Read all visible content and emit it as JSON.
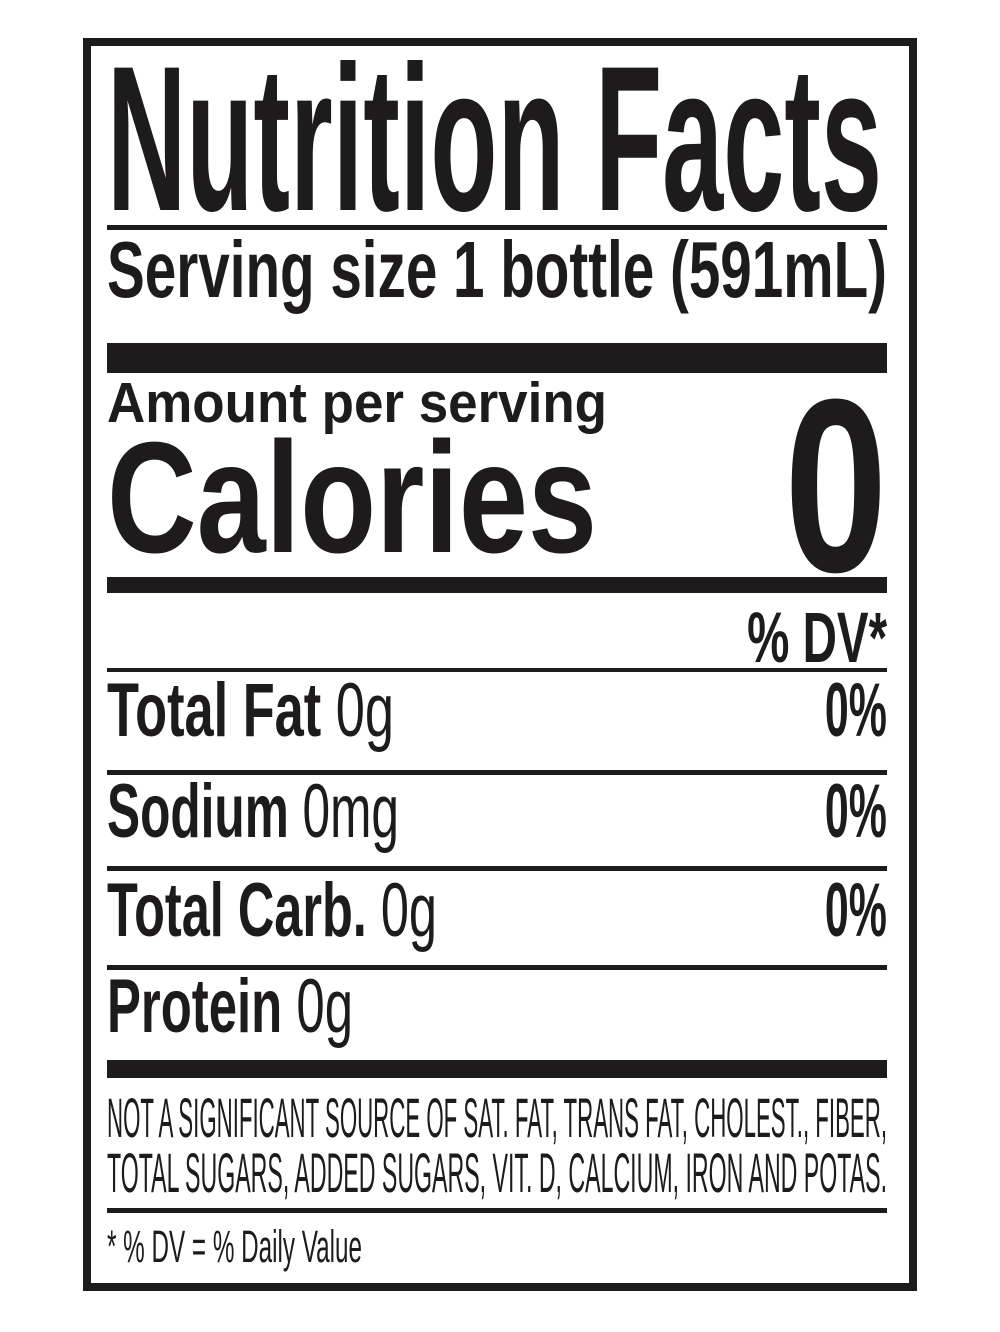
{
  "label": {
    "title": "Nutrition Facts",
    "serving_size": "Serving size 1 bottle (591mL)",
    "amount_per_serving": "Amount per serving",
    "calories_label": "Calories",
    "calories_value": "0",
    "dv_header": "% DV*",
    "rows": [
      {
        "name": "Total Fat",
        "amount": "0g",
        "dv": "0%"
      },
      {
        "name": "Sodium",
        "amount": "0mg",
        "dv": "0%"
      },
      {
        "name": "Total Carb.",
        "amount": "0g",
        "dv": "0%"
      },
      {
        "name": "Protein",
        "amount": "0g",
        "dv": ""
      }
    ],
    "footnote_line1": "NOT A SIGNIFICANT SOURCE OF SAT. FAT, TRANS FAT, CHOLEST., FIBER,",
    "footnote_line2": "TOTAL SUGARS, ADDED SUGARS, VIT. D, CALCIUM, IRON AND POTAS.",
    "daily_value_note": "* % DV = % Daily Value",
    "colors": {
      "ink": "#1d1b1c",
      "background": "#ffffff"
    }
  }
}
